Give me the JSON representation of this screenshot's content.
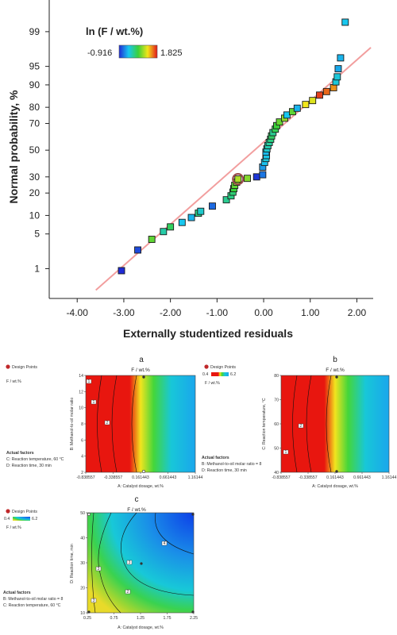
{
  "colors": {
    "fit_line": "#f29e9e",
    "axis": "#222222",
    "design_point": "#c0282a"
  },
  "scale_legend": {
    "title": "ln (F / wt.%)",
    "min": "-0.916",
    "max": "1.825"
  },
  "chart_data": [
    {
      "type": "scatter",
      "title": "",
      "xlabel": "Externally studentized residuals",
      "ylabel": "Normal probability, %",
      "xlim": [
        -4.6,
        2.35
      ],
      "x_ticks": [
        "-4.00",
        "-3.00",
        "-2.00",
        "-1.00",
        "0.00",
        "1.00",
        "2.00"
      ],
      "y_ticks": [
        "1",
        "5",
        "10",
        "20",
        "30",
        "50",
        "70",
        "80",
        "90",
        "95",
        "99"
      ],
      "fit_line": {
        "x": [
          -3.6,
          2.3
        ],
        "y": [
          0.3,
          97.8
        ]
      },
      "points": [
        {
          "x": -3.05,
          "y": 0.9,
          "c": 0.0
        },
        {
          "x": -2.7,
          "y": 2.5,
          "c": 0.05
        },
        {
          "x": -2.4,
          "y": 4.0,
          "c": 0.55
        },
        {
          "x": -2.15,
          "y": 5.5,
          "c": 0.35
        },
        {
          "x": -2.0,
          "y": 6.6,
          "c": 0.45
        },
        {
          "x": -1.75,
          "y": 7.8,
          "c": 0.25
        },
        {
          "x": -1.55,
          "y": 9.3,
          "c": 0.22
        },
        {
          "x": -1.4,
          "y": 10.8,
          "c": 0.4
        },
        {
          "x": -1.35,
          "y": 11.5,
          "c": 0.3
        },
        {
          "x": -1.1,
          "y": 13.6,
          "c": 0.1
        },
        {
          "x": -0.8,
          "y": 16.5,
          "c": 0.38
        },
        {
          "x": -0.7,
          "y": 18.5,
          "c": 0.4
        },
        {
          "x": -0.66,
          "y": 20.5,
          "c": 0.42
        },
        {
          "x": -0.64,
          "y": 22.5,
          "c": 0.5
        },
        {
          "x": -0.62,
          "y": 24.5,
          "c": 0.55
        },
        {
          "x": -0.58,
          "y": 26.5,
          "c": 0.6
        },
        {
          "x": -0.55,
          "y": 28.5,
          "c": 0.66
        },
        {
          "x": -0.35,
          "y": 29.0,
          "c": 0.6
        },
        {
          "x": -0.15,
          "y": 30.0,
          "c": 0.02
        },
        {
          "x": -0.02,
          "y": 31.5,
          "c": 0.12
        },
        {
          "x": -0.02,
          "y": 37.0,
          "c": 0.18
        },
        {
          "x": 0.02,
          "y": 40.5,
          "c": 0.24
        },
        {
          "x": 0.05,
          "y": 43.5,
          "c": 0.28
        },
        {
          "x": 0.06,
          "y": 45.8,
          "c": 0.26
        },
        {
          "x": 0.05,
          "y": 48.5,
          "c": 0.23
        },
        {
          "x": 0.07,
          "y": 51.0,
          "c": 0.3
        },
        {
          "x": 0.09,
          "y": 53.5,
          "c": 0.34
        },
        {
          "x": 0.12,
          "y": 56.0,
          "c": 0.36
        },
        {
          "x": 0.15,
          "y": 58.5,
          "c": 0.4
        },
        {
          "x": 0.17,
          "y": 61.0,
          "c": 0.44
        },
        {
          "x": 0.2,
          "y": 63.5,
          "c": 0.38
        },
        {
          "x": 0.25,
          "y": 66.0,
          "c": 0.46
        },
        {
          "x": 0.28,
          "y": 68.5,
          "c": 0.5
        },
        {
          "x": 0.34,
          "y": 71.0,
          "c": 0.56
        },
        {
          "x": 0.45,
          "y": 73.5,
          "c": 0.62
        },
        {
          "x": 0.5,
          "y": 75.5,
          "c": 0.25
        },
        {
          "x": 0.62,
          "y": 77.5,
          "c": 0.55
        },
        {
          "x": 0.72,
          "y": 79.5,
          "c": 0.22
        },
        {
          "x": 0.9,
          "y": 81.5,
          "c": 0.75
        },
        {
          "x": 1.05,
          "y": 83.5,
          "c": 0.72
        },
        {
          "x": 1.2,
          "y": 86.0,
          "c": 0.95
        },
        {
          "x": 1.35,
          "y": 87.5,
          "c": 0.9
        },
        {
          "x": 1.5,
          "y": 89.0,
          "c": 0.85
        },
        {
          "x": 1.55,
          "y": 91.0,
          "c": 0.28
        },
        {
          "x": 1.58,
          "y": 92.5,
          "c": 0.28
        },
        {
          "x": 1.6,
          "y": 94.5,
          "c": 0.2
        },
        {
          "x": 1.65,
          "y": 96.5,
          "c": 0.22
        },
        {
          "x": 1.75,
          "y": 99.4,
          "c": 0.25
        }
      ]
    },
    {
      "type": "heatmap",
      "panel": "a",
      "title": "F / wt.%",
      "xlabel": "A: Catalyst dosage, wt.%",
      "ylabel": "B: Methanol-to-oil molar ratio",
      "x_ticks": [
        "-0.838557",
        "-0.338557",
        "0.161443",
        "0.661443",
        "1.16144"
      ],
      "y_ticks": [
        "2",
        "4",
        "6",
        "8",
        "10",
        "12",
        "14"
      ],
      "legend": {
        "design_points": "Design Points",
        "variable": "F / wt.%",
        "min": "0.4",
        "max": "6.2"
      },
      "actual_factors": {
        "heading": "Actual factors",
        "lines": [
          "C: Reaction temperature, 60 °C",
          "D: Reaction time, 30 min"
        ]
      },
      "contour_labels": [
        "1",
        "1",
        "2"
      ]
    },
    {
      "type": "heatmap",
      "panel": "b",
      "title": "F / wt.%",
      "xlabel": "A: Catalyst dosage, wt.%",
      "ylabel": "C: Reaction temperature, °C",
      "x_ticks": [
        "-0.838557",
        "-0.338557",
        "0.161443",
        "0.661443",
        "1.16144"
      ],
      "y_ticks": [
        "40",
        "50",
        "60",
        "70",
        "80"
      ],
      "legend": {
        "design_points": "Design Points",
        "variable": "F / wt.%",
        "min": "0.4",
        "max": "6.2"
      },
      "actual_factors": {
        "heading": "Actual factors",
        "lines": [
          "B: Methanol-to-oil molar ratio = 8",
          "D: Reaction time, 30 min"
        ]
      },
      "contour_labels": [
        "2",
        "1"
      ]
    },
    {
      "type": "heatmap",
      "panel": "c",
      "title": "F / wt.%",
      "xlabel": "A: Catalyst dosage, wt.%",
      "ylabel": "D: Reaction time, min",
      "x_ticks": [
        "0.25",
        "0.75",
        "1.25",
        "1.75",
        "2.25"
      ],
      "y_ticks": [
        "10",
        "20",
        "30",
        "40",
        "50"
      ],
      "legend": {
        "design_points": "Design Points",
        "variable": "F / wt.%",
        "min": "0.4",
        "max": "6.2"
      },
      "actual_factors": {
        "heading": "Actual factors",
        "lines": [
          "B: Methanol-to-oil molar ratio = 8",
          "C: Reaction temperature, 60 °C"
        ]
      },
      "contour_labels": [
        "3",
        "3",
        "2",
        "3",
        "4"
      ]
    }
  ]
}
